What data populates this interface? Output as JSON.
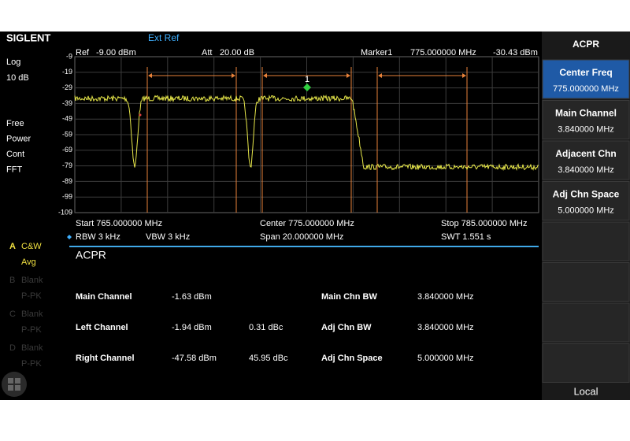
{
  "header": {
    "brand": "SIGLENT",
    "ext_ref": "Ext Ref"
  },
  "info": {
    "ref_label": "Ref",
    "ref_value": "-9.00 dBm",
    "att_label": "Att",
    "att_value": "20.00 dB",
    "marker_label": "Marker1",
    "marker_freq": "775.000000 MHz",
    "marker_level": "-30.43 dBm",
    "marker_number": "1"
  },
  "y_labels": [
    "-9",
    "-19",
    "-29",
    "-39",
    "-49",
    "-59",
    "-69",
    "-79",
    "-89",
    "-99",
    "-109"
  ],
  "left_panel": {
    "scale": "Log",
    "div": "10 dB",
    "modes": [
      "Free",
      "Power",
      "Cont",
      "FFT"
    ],
    "traces": [
      {
        "letter": "A",
        "type": "C&W",
        "det": "Avg"
      },
      {
        "letter": "B",
        "type": "Blank",
        "det": "P-PK"
      },
      {
        "letter": "C",
        "type": "Blank",
        "det": "P-PK"
      },
      {
        "letter": "D",
        "type": "Blank",
        "det": "P-PK"
      }
    ]
  },
  "footer": {
    "start": "Start  765.000000 MHz",
    "center": "Center  775.000000 MHz",
    "stop": "Stop  785.000000 MHz",
    "rbw": "RBW 3 kHz",
    "vbw": "VBW  3 kHz",
    "span": "Span    20.000000 MHz",
    "swt": "SWT   1.551 s"
  },
  "acpr": {
    "title": "ACPR",
    "rows": [
      [
        "Main Channel",
        "-1.63 dBm",
        "",
        "Main Chn BW",
        "3.840000 MHz"
      ],
      [
        "Left Channel",
        "-1.94 dBm",
        "0.31 dBc",
        "Adj Chn BW",
        "3.840000 MHz"
      ],
      [
        "Right Channel",
        "-47.58 dBm",
        "45.95 dBc",
        "Adj Chn Space",
        "5.000000 MHz"
      ]
    ]
  },
  "menu": {
    "title": "ACPR",
    "items": [
      {
        "label": "Center Freq",
        "value": "775.000000 MHz"
      },
      {
        "label": "Main Channel",
        "value": "3.840000 MHz"
      },
      {
        "label": "Adjacent Chn",
        "value": "3.840000 MHz"
      },
      {
        "label": "Adj Chn Space",
        "value": "5.000000 MHz"
      }
    ],
    "local": "Local"
  }
}
